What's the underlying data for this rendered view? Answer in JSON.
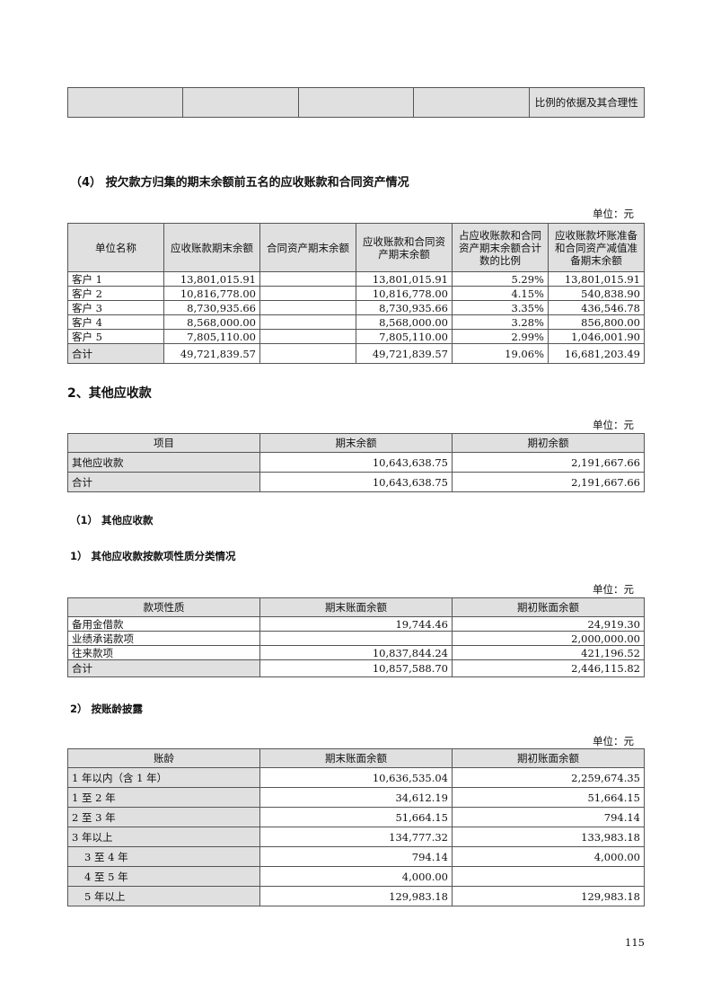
{
  "top_table": {
    "last_cell": "比例的依据及其合理性"
  },
  "section4": {
    "title": "（4） 按欠款方归集的期末余额前五名的应收账款和合同资产情况",
    "unit": "单位：元",
    "headers": [
      "单位名称",
      "应收账款期末余额",
      "合同资产期末余额",
      "应收账款和合同资产期末余额",
      "占应收账款和合同资产期末余额合计数的比例",
      "应收账款坏账准备和合同资产减值准备期末余额"
    ],
    "rows": [
      [
        "客户 1",
        "13,801,015.91",
        "",
        "13,801,015.91",
        "5.29%",
        "13,801,015.91"
      ],
      [
        "客户 2",
        "10,816,778.00",
        "",
        "10,816,778.00",
        "4.15%",
        "540,838.90"
      ],
      [
        "客户 3",
        "8,730,935.66",
        "",
        "8,730,935.66",
        "3.35%",
        "436,546.78"
      ],
      [
        "客户 4",
        "8,568,000.00",
        "",
        "8,568,000.00",
        "3.28%",
        "856,800.00"
      ],
      [
        "客户 5",
        "7,805,110.00",
        "",
        "7,805,110.00",
        "2.99%",
        "1,046,001.90"
      ],
      [
        "合计",
        "49,721,839.57",
        "",
        "49,721,839.57",
        "19.06%",
        "16,681,203.49"
      ]
    ]
  },
  "section2": {
    "title": "2、其他应收款",
    "unit": "单位：元",
    "headers": [
      "项目",
      "期末余额",
      "期初余额"
    ],
    "rows": [
      [
        "其他应收款",
        "10,643,638.75",
        "2,191,667.66"
      ],
      [
        "合计",
        "10,643,638.75",
        "2,191,667.66"
      ]
    ]
  },
  "sub1": {
    "title": "（1） 其他应收款"
  },
  "sub1a": {
    "title": "1） 其他应收款按款项性质分类情况",
    "unit": "单位：元",
    "headers": [
      "款项性质",
      "期末账面余额",
      "期初账面余额"
    ],
    "rows": [
      [
        "备用金借款",
        "19,744.46",
        "24,919.30"
      ],
      [
        "业绩承诺款项",
        "",
        "2,000,000.00"
      ],
      [
        "往来款项",
        "10,837,844.24",
        "421,196.52"
      ],
      [
        "合计",
        "10,857,588.70",
        "2,446,115.82"
      ]
    ]
  },
  "sub1b": {
    "title": "2） 按账龄披露",
    "unit": "单位：元",
    "headers": [
      "账龄",
      "期末账面余额",
      "期初账面余额"
    ],
    "rows": [
      [
        "1 年以内（含 1 年）",
        "10,636,535.04",
        "2,259,674.35"
      ],
      [
        "1 至 2 年",
        "34,612.19",
        "51,664.15"
      ],
      [
        "2 至 3 年",
        "51,664.15",
        "794.14"
      ],
      [
        "3 年以上",
        "134,777.32",
        "133,983.18"
      ],
      [
        "3 至 4 年",
        "794.14",
        "4,000.00"
      ],
      [
        "4 至 5 年",
        "4,000.00",
        ""
      ],
      [
        "5 年以上",
        "129,983.18",
        "129,983.18"
      ]
    ]
  },
  "page_number": "115"
}
